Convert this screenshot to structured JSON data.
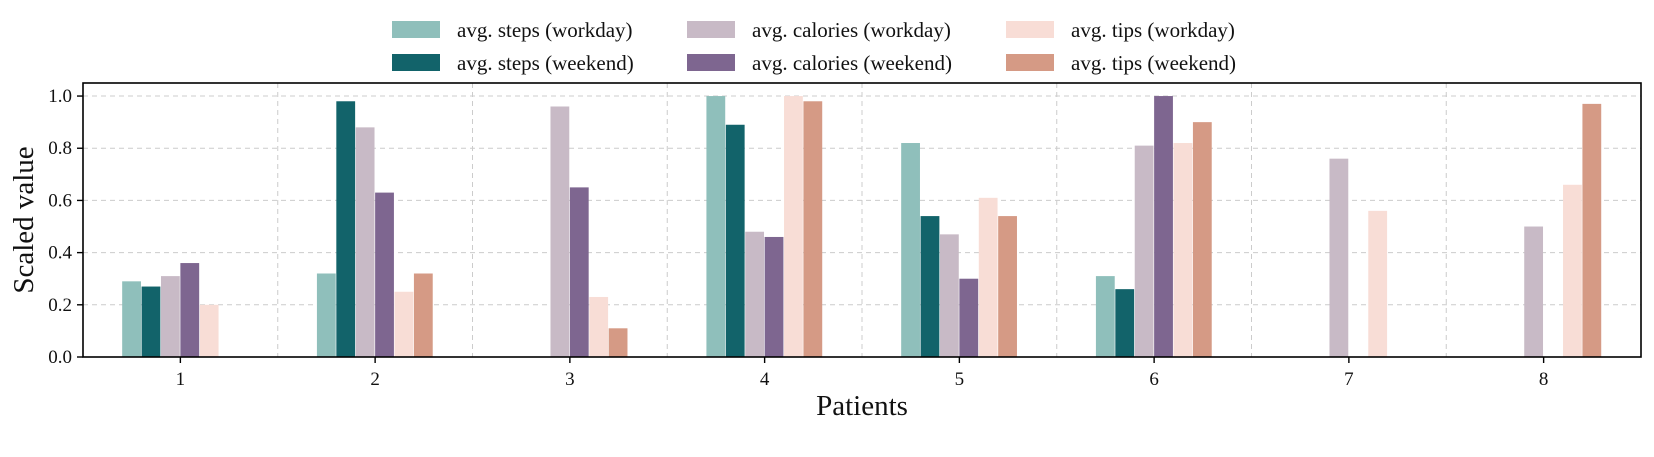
{
  "chart_data": {
    "type": "bar",
    "title": "",
    "xlabel": "Patients",
    "ylabel": "Scaled value",
    "categories": [
      "1",
      "2",
      "3",
      "4",
      "5",
      "6",
      "7",
      "8"
    ],
    "ylim": [
      0,
      1.05
    ],
    "yticks": [
      "0.0",
      "0.2",
      "0.4",
      "0.6",
      "0.8",
      "1.0"
    ],
    "grid": true,
    "legend_position": "top-center",
    "series": [
      {
        "name": "avg. steps (workday)",
        "color": "#8fbfbb",
        "values": [
          0.29,
          0.32,
          0,
          1.0,
          0.82,
          0.31,
          0,
          0
        ]
      },
      {
        "name": "avg. steps (weekend)",
        "color": "#12636a",
        "values": [
          0.27,
          0.98,
          0,
          0.89,
          0.54,
          0.26,
          0,
          0
        ]
      },
      {
        "name": "avg. calories (workday)",
        "color": "#c8bac6",
        "values": [
          0.31,
          0.88,
          0.96,
          0.48,
          0.47,
          0.81,
          0.76,
          0.5
        ]
      },
      {
        "name": "avg. calories (weekend)",
        "color": "#7e6690",
        "values": [
          0.36,
          0.63,
          0.65,
          0.46,
          0.3,
          1.0,
          0,
          0
        ]
      },
      {
        "name": "avg. tips (workday)",
        "color": "#f8ddd6",
        "values": [
          0.2,
          0.25,
          0.23,
          1.0,
          0.61,
          0.82,
          0.56,
          0.66
        ]
      },
      {
        "name": "avg. tips (weekend)",
        "color": "#d59a85",
        "values": [
          0,
          0.32,
          0.11,
          0.98,
          0.54,
          0.9,
          0,
          0.97
        ]
      }
    ]
  }
}
